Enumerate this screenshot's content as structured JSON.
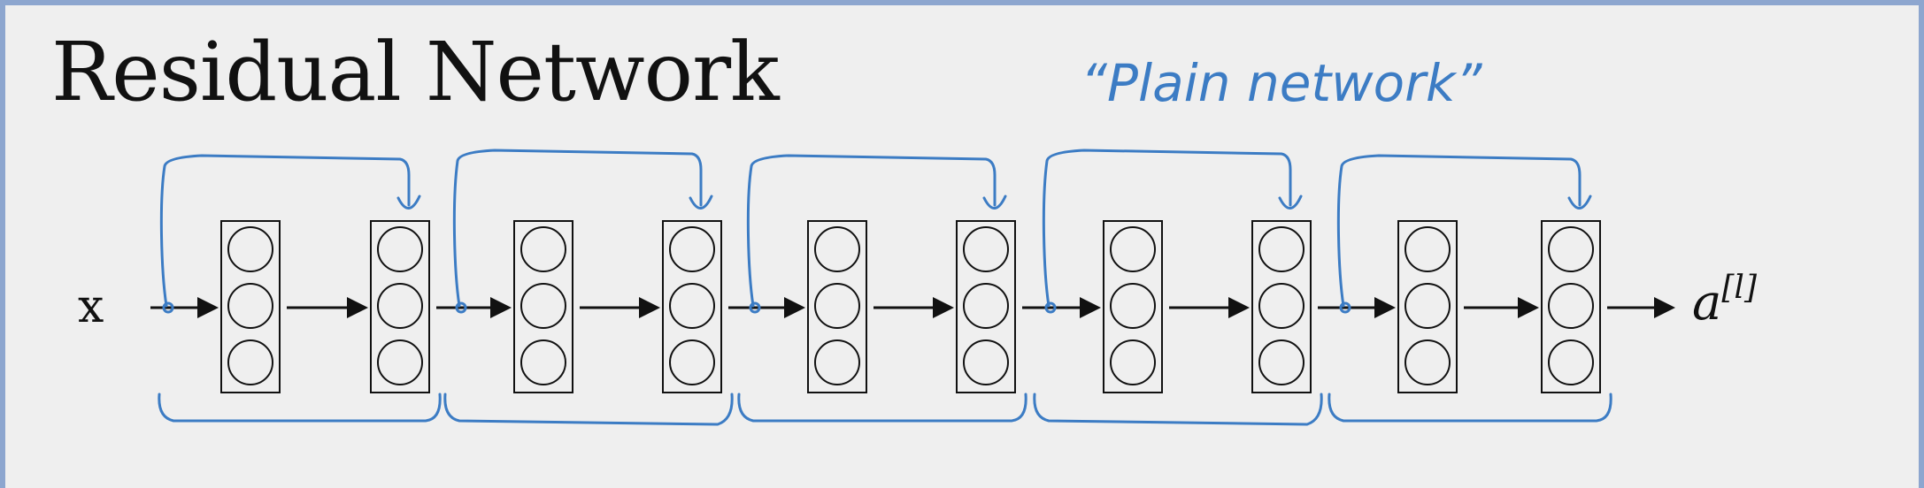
{
  "title": "Residual Network",
  "annotation": "“Plain network”",
  "input_label": "x",
  "output_label": {
    "base": "a",
    "superscript": "[l]"
  },
  "residual_blocks": 5,
  "layers_per_block": 2,
  "neurons_per_layer": 3,
  "colors": {
    "ink": "#111111",
    "annotation": "#3c7cc4",
    "slide_background": "#efefef",
    "frame": "#8da6cf"
  }
}
